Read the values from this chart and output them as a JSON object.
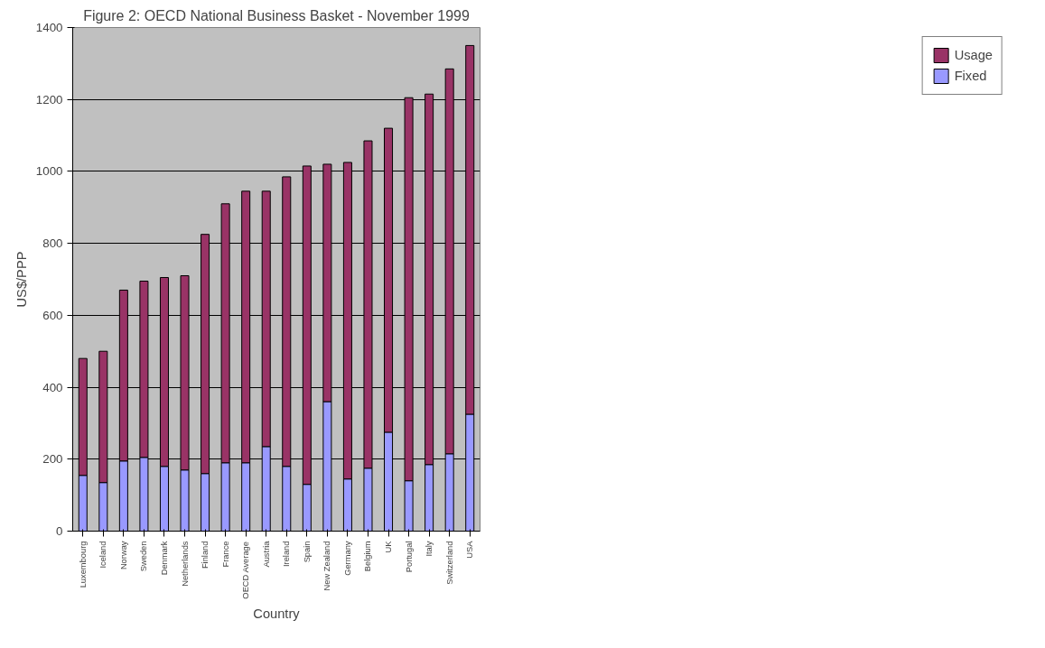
{
  "chart_data": {
    "type": "bar",
    "title": "Figure 2: OECD National Business Basket - November 1999",
    "xlabel": "Country",
    "ylabel": "US$/PPP",
    "categories": [
      "Luxembourg",
      "Iceland",
      "Norway",
      "Sweden",
      "Denmark",
      "Netherlands",
      "Finland",
      "France",
      "OECD Average",
      "Austria",
      "Ireland",
      "Spain",
      "New Zealand",
      "Germany",
      "Belgium",
      "UK",
      "Portugal",
      "Italy",
      "Switzerland",
      "USA"
    ],
    "stacked": true,
    "series": [
      {
        "name": "Fixed",
        "color": "#9999ff",
        "values": [
          155,
          135,
          195,
          205,
          180,
          170,
          160,
          190,
          190,
          235,
          180,
          130,
          360,
          145,
          175,
          275,
          140,
          185,
          215,
          325
        ]
      },
      {
        "name": "Usage",
        "color": "#993366",
        "values": [
          325,
          365,
          475,
          490,
          525,
          540,
          665,
          720,
          755,
          710,
          805,
          885,
          660,
          880,
          910,
          845,
          1065,
          1030,
          1070,
          1025
        ]
      }
    ],
    "ylim": [
      0,
      1400
    ],
    "yticks": [
      0,
      200,
      400,
      600,
      800,
      1000,
      1200,
      1400
    ],
    "grid": "y",
    "legend": "right"
  }
}
